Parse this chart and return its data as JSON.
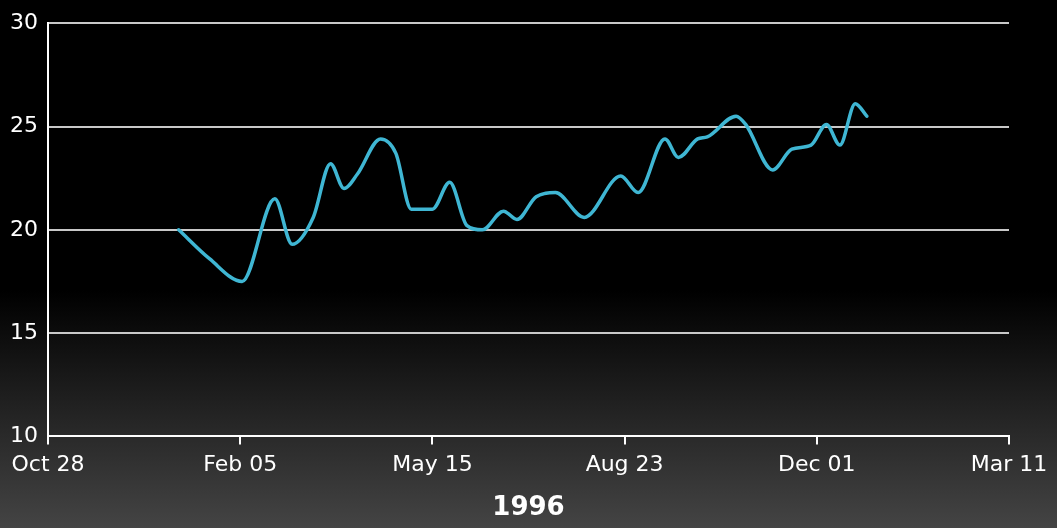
{
  "chart_data": {
    "type": "line",
    "xlabel": "1996",
    "x": [
      "1996-01-04",
      "1996-01-20",
      "1996-02-06",
      "1996-02-23",
      "1996-03-03",
      "1996-03-14",
      "1996-03-23",
      "1996-03-30",
      "1996-04-06",
      "1996-04-18",
      "1996-04-26",
      "1996-05-04",
      "1996-05-15",
      "1996-05-24",
      "1996-06-02",
      "1996-06-10",
      "1996-06-21",
      "1996-06-28",
      "1996-07-08",
      "1996-07-18",
      "1996-08-02",
      "1996-08-21",
      "1996-08-30",
      "1996-09-13",
      "1996-09-20",
      "1996-09-30",
      "1996-10-05",
      "1996-10-20",
      "1996-10-25",
      "1996-11-08",
      "1996-11-18",
      "1996-11-28",
      "1996-12-06",
      "1996-12-13",
      "1996-12-21",
      "1996-12-27"
    ],
    "series": [
      {
        "color": "#3fb6d3",
        "values": [
          20.0,
          18.6,
          17.5,
          21.5,
          19.3,
          20.6,
          23.2,
          22.0,
          22.7,
          24.4,
          23.7,
          21.0,
          21.0,
          22.3,
          20.2,
          20.0,
          20.9,
          20.5,
          21.6,
          21.8,
          20.6,
          22.6,
          21.8,
          24.4,
          23.5,
          24.4,
          24.5,
          25.5,
          25.1,
          22.9,
          23.9,
          24.1,
          25.1,
          24.1,
          26.1,
          25.5
        ]
      }
    ],
    "xlim": [
      "1995-10-28",
      "1997-03-11"
    ],
    "xticks": [
      {
        "value": "1995-10-28",
        "label": "Oct 28"
      },
      {
        "value": "1996-02-05",
        "label": "Feb 05"
      },
      {
        "value": "1996-05-15",
        "label": "May 15"
      },
      {
        "value": "1996-08-23",
        "label": "Aug 23"
      },
      {
        "value": "1996-12-01",
        "label": "Dec 01"
      },
      {
        "value": "1997-03-11",
        "label": "Mar 11"
      }
    ],
    "ylim": [
      10,
      30
    ],
    "yticks": [
      10,
      15,
      20,
      25,
      30
    ],
    "grid": "y",
    "legend": false,
    "marker": "none",
    "line_style": "solid"
  }
}
